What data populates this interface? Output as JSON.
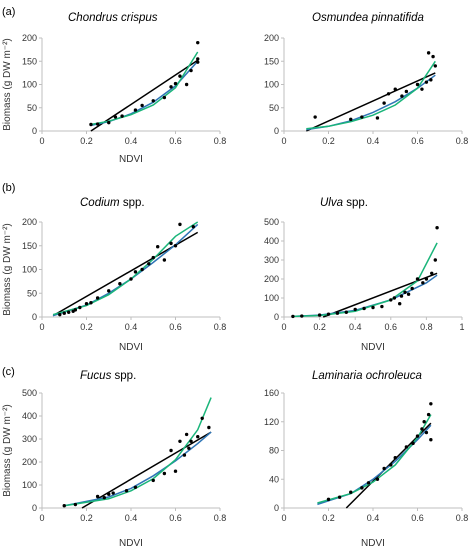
{
  "panel_labels": [
    "(a)",
    "(b)",
    "(c)"
  ],
  "colors": {
    "black": "#000000",
    "blue": "#2e75b6",
    "green": "#1ab57a",
    "axis": "#bfbfbf"
  },
  "chart_data": [
    {
      "type": "scatter",
      "panel_label": "(a)",
      "title_italic": "Chondrus crispus",
      "title_plain": "",
      "xlabel": "NDVI",
      "ylabel": "Biomass (g DW m⁻²)",
      "xlim": [
        0,
        0.8
      ],
      "xticks": [
        0,
        0.2,
        0.4,
        0.6,
        0.8
      ],
      "xtick_labels": [
        "0",
        "0.2",
        "0.4",
        "0.6",
        "0.8"
      ],
      "ylim": [
        0,
        200
      ],
      "yticks": [
        0,
        50,
        100,
        150,
        200
      ],
      "ytick_labels": [
        "0",
        "50",
        "100",
        "150",
        "200"
      ],
      "points": [
        [
          0.22,
          14
        ],
        [
          0.25,
          15
        ],
        [
          0.3,
          18
        ],
        [
          0.33,
          30
        ],
        [
          0.36,
          32
        ],
        [
          0.42,
          45
        ],
        [
          0.45,
          55
        ],
        [
          0.5,
          65
        ],
        [
          0.55,
          72
        ],
        [
          0.58,
          95
        ],
        [
          0.6,
          102
        ],
        [
          0.62,
          118
        ],
        [
          0.65,
          100
        ],
        [
          0.67,
          130
        ],
        [
          0.7,
          148
        ],
        [
          0.7,
          155
        ],
        [
          0.7,
          190
        ]
      ],
      "fits": [
        {
          "color": "black",
          "x": [
            0.22,
            0.7
          ],
          "y": [
            -3,
            152
          ]
        },
        {
          "color": "blue",
          "x": [
            0.22,
            0.3,
            0.4,
            0.5,
            0.6,
            0.7
          ],
          "y": [
            12,
            20,
            37,
            62,
            97,
            150
          ]
        },
        {
          "color": "green",
          "x": [
            0.22,
            0.3,
            0.4,
            0.5,
            0.6,
            0.7
          ],
          "y": [
            14,
            21,
            35,
            56,
            93,
            170
          ]
        }
      ]
    },
    {
      "type": "scatter",
      "panel_label": "",
      "title_italic": "Osmundea pinnatifida",
      "title_plain": "",
      "xlabel": "",
      "ylabel": "",
      "xlim": [
        0,
        0.8
      ],
      "xticks": [
        0,
        0.2,
        0.4,
        0.6,
        0.8
      ],
      "xtick_labels": [
        "0",
        "0.2",
        "0.4",
        "0.6",
        "0.8"
      ],
      "ylim": [
        0,
        200
      ],
      "yticks": [
        0,
        50,
        100,
        150,
        200
      ],
      "ytick_labels": [
        "0",
        "50",
        "100",
        "150",
        "200"
      ],
      "points": [
        [
          0.14,
          30
        ],
        [
          0.3,
          25
        ],
        [
          0.35,
          30
        ],
        [
          0.42,
          28
        ],
        [
          0.45,
          60
        ],
        [
          0.47,
          80
        ],
        [
          0.5,
          90
        ],
        [
          0.53,
          75
        ],
        [
          0.55,
          85
        ],
        [
          0.6,
          100
        ],
        [
          0.62,
          90
        ],
        [
          0.64,
          105
        ],
        [
          0.65,
          168
        ],
        [
          0.66,
          110
        ],
        [
          0.67,
          160
        ],
        [
          0.68,
          140
        ]
      ],
      "fits": [
        {
          "color": "black",
          "x": [
            0.1,
            0.68
          ],
          "y": [
            -5,
            125
          ]
        },
        {
          "color": "blue",
          "x": [
            0.1,
            0.2,
            0.3,
            0.4,
            0.5,
            0.6,
            0.68
          ],
          "y": [
            3,
            10,
            22,
            40,
            63,
            92,
            120
          ]
        },
        {
          "color": "green",
          "x": [
            0.1,
            0.2,
            0.3,
            0.4,
            0.5,
            0.6,
            0.68
          ],
          "y": [
            5,
            10,
            20,
            34,
            56,
            92,
            150
          ]
        }
      ]
    },
    {
      "type": "scatter",
      "panel_label": "(b)",
      "title_italic": "Codium",
      "title_plain": " spp.",
      "xlabel": "NDVI",
      "ylabel": "Biomass (g DW m⁻²)",
      "xlim": [
        0,
        0.8
      ],
      "xticks": [
        0,
        0.2,
        0.4,
        0.6,
        0.8
      ],
      "xtick_labels": [
        "0",
        "0.2",
        "0.4",
        "0.6",
        "0.8"
      ],
      "ylim": [
        0,
        200
      ],
      "yticks": [
        0,
        50,
        100,
        150,
        200
      ],
      "ytick_labels": [
        "0",
        "50",
        "100",
        "150",
        "200"
      ],
      "points": [
        [
          0.08,
          5
        ],
        [
          0.1,
          8
        ],
        [
          0.12,
          10
        ],
        [
          0.14,
          12
        ],
        [
          0.15,
          15
        ],
        [
          0.17,
          20
        ],
        [
          0.2,
          28
        ],
        [
          0.22,
          30
        ],
        [
          0.25,
          40
        ],
        [
          0.3,
          55
        ],
        [
          0.35,
          70
        ],
        [
          0.4,
          80
        ],
        [
          0.42,
          95
        ],
        [
          0.45,
          100
        ],
        [
          0.48,
          112
        ],
        [
          0.5,
          125
        ],
        [
          0.52,
          148
        ],
        [
          0.55,
          120
        ],
        [
          0.58,
          155
        ],
        [
          0.6,
          150
        ],
        [
          0.62,
          195
        ],
        [
          0.68,
          190
        ]
      ],
      "fits": [
        {
          "color": "black",
          "x": [
            0.05,
            0.7
          ],
          "y": [
            3,
            178
          ]
        },
        {
          "color": "blue",
          "x": [
            0.05,
            0.2,
            0.3,
            0.4,
            0.5,
            0.6,
            0.7
          ],
          "y": [
            3,
            25,
            50,
            80,
            115,
            152,
            195
          ]
        },
        {
          "color": "green",
          "x": [
            0.05,
            0.2,
            0.3,
            0.4,
            0.5,
            0.6,
            0.7
          ],
          "y": [
            5,
            24,
            47,
            80,
            122,
            170,
            220
          ]
        }
      ]
    },
    {
      "type": "scatter",
      "panel_label": "",
      "title_italic": "Ulva",
      "title_plain": " spp.",
      "xlabel": "NDVI",
      "ylabel": "",
      "xlim": [
        0,
        1.0
      ],
      "xticks": [
        0,
        0.2,
        0.4,
        0.6,
        0.8,
        1.0
      ],
      "xtick_labels": [
        "0",
        "0.2",
        "0.4",
        "0.6",
        "0.8",
        "1"
      ],
      "ylim": [
        0,
        500
      ],
      "yticks": [
        0,
        100,
        200,
        300,
        400,
        500
      ],
      "ytick_labels": [
        "0",
        "100",
        "200",
        "300",
        "400",
        "500"
      ],
      "points": [
        [
          0.05,
          3
        ],
        [
          0.1,
          5
        ],
        [
          0.2,
          10
        ],
        [
          0.25,
          15
        ],
        [
          0.3,
          20
        ],
        [
          0.35,
          25
        ],
        [
          0.4,
          40
        ],
        [
          0.45,
          45
        ],
        [
          0.5,
          50
        ],
        [
          0.55,
          55
        ],
        [
          0.6,
          90
        ],
        [
          0.62,
          100
        ],
        [
          0.65,
          70
        ],
        [
          0.66,
          110
        ],
        [
          0.68,
          130
        ],
        [
          0.7,
          120
        ],
        [
          0.72,
          150
        ],
        [
          0.75,
          200
        ],
        [
          0.78,
          180
        ],
        [
          0.8,
          200
        ],
        [
          0.83,
          230
        ],
        [
          0.85,
          300
        ],
        [
          0.86,
          470
        ]
      ],
      "fits": [
        {
          "color": "black",
          "x": [
            0.22,
            0.86
          ],
          "y": [
            0,
            230
          ]
        },
        {
          "color": "blue",
          "x": [
            0.05,
            0.2,
            0.4,
            0.6,
            0.8,
            0.86
          ],
          "y": [
            3,
            10,
            35,
            90,
            180,
            220
          ]
        },
        {
          "color": "green",
          "x": [
            0.05,
            0.2,
            0.4,
            0.6,
            0.75,
            0.86
          ],
          "y": [
            3,
            8,
            30,
            90,
            190,
            390
          ]
        }
      ]
    },
    {
      "type": "scatter",
      "panel_label": "(c)",
      "title_italic": "Fucus",
      "title_plain": " spp.",
      "xlabel": "NDVI",
      "ylabel": "Biomass (g DW m⁻²)",
      "xlim": [
        0,
        0.8
      ],
      "xticks": [
        0,
        0.2,
        0.4,
        0.6,
        0.8
      ],
      "xtick_labels": [
        "0",
        "0.2",
        "0.4",
        "0.6",
        "0.8"
      ],
      "ylim": [
        0,
        500
      ],
      "yticks": [
        0,
        100,
        200,
        300,
        400,
        500
      ],
      "ytick_labels": [
        "0",
        "100",
        "200",
        "300",
        "400",
        "500"
      ],
      "points": [
        [
          0.1,
          10
        ],
        [
          0.15,
          15
        ],
        [
          0.25,
          50
        ],
        [
          0.28,
          45
        ],
        [
          0.3,
          60
        ],
        [
          0.32,
          65
        ],
        [
          0.38,
          75
        ],
        [
          0.42,
          90
        ],
        [
          0.5,
          120
        ],
        [
          0.55,
          150
        ],
        [
          0.58,
          250
        ],
        [
          0.6,
          160
        ],
        [
          0.62,
          290
        ],
        [
          0.64,
          230
        ],
        [
          0.65,
          320
        ],
        [
          0.66,
          260
        ],
        [
          0.67,
          290
        ],
        [
          0.7,
          310
        ],
        [
          0.72,
          390
        ],
        [
          0.75,
          350
        ]
      ],
      "fits": [
        {
          "color": "black",
          "x": [
            0.18,
            0.76
          ],
          "y": [
            0,
            330
          ]
        },
        {
          "color": "blue",
          "x": [
            0.1,
            0.3,
            0.4,
            0.5,
            0.6,
            0.7,
            0.76
          ],
          "y": [
            10,
            48,
            85,
            140,
            205,
            280,
            330
          ]
        },
        {
          "color": "green",
          "x": [
            0.1,
            0.3,
            0.4,
            0.5,
            0.6,
            0.7,
            0.76
          ],
          "y": [
            10,
            40,
            75,
            128,
            210,
            340,
            480
          ]
        }
      ]
    },
    {
      "type": "scatter",
      "panel_label": "",
      "title_italic": "Laminaria ochroleuca",
      "title_plain": "",
      "xlabel": "NDVI",
      "ylabel": "",
      "xlim": [
        0,
        0.8
      ],
      "xticks": [
        0,
        0.2,
        0.4,
        0.6,
        0.8
      ],
      "xtick_labels": [
        "0",
        "0.2",
        "0.4",
        "0.6",
        "0.8"
      ],
      "ylim": [
        0,
        160
      ],
      "yticks": [
        0,
        40,
        80,
        120,
        160
      ],
      "ytick_labels": [
        "0",
        "40",
        "80",
        "120",
        "160"
      ],
      "points": [
        [
          0.2,
          12
        ],
        [
          0.25,
          15
        ],
        [
          0.3,
          22
        ],
        [
          0.35,
          28
        ],
        [
          0.38,
          35
        ],
        [
          0.42,
          40
        ],
        [
          0.45,
          55
        ],
        [
          0.48,
          60
        ],
        [
          0.5,
          70
        ],
        [
          0.55,
          85
        ],
        [
          0.58,
          90
        ],
        [
          0.6,
          100
        ],
        [
          0.62,
          110
        ],
        [
          0.63,
          120
        ],
        [
          0.64,
          105
        ],
        [
          0.65,
          130
        ],
        [
          0.66,
          145
        ],
        [
          0.66,
          95
        ]
      ],
      "fits": [
        {
          "color": "black",
          "x": [
            0.28,
            0.66
          ],
          "y": [
            0,
            118
          ]
        },
        {
          "color": "blue",
          "x": [
            0.15,
            0.3,
            0.4,
            0.5,
            0.6,
            0.66
          ],
          "y": [
            5,
            20,
            40,
            65,
            95,
            115
          ]
        },
        {
          "color": "green",
          "x": [
            0.15,
            0.3,
            0.4,
            0.5,
            0.6,
            0.66
          ],
          "y": [
            7,
            20,
            36,
            60,
            98,
            130
          ]
        }
      ]
    }
  ]
}
